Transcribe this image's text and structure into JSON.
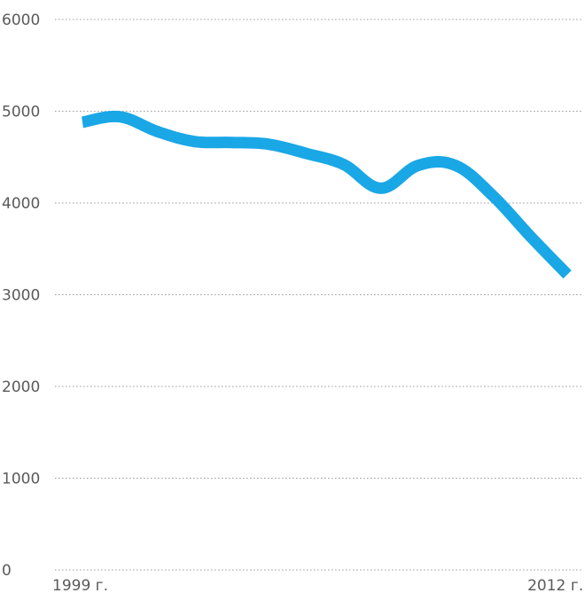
{
  "chart_data": {
    "type": "line",
    "title": "",
    "xlabel": "",
    "ylabel": "",
    "x": [
      1999,
      2000,
      2001,
      2002,
      2003,
      2004,
      2005,
      2006,
      2007,
      2008,
      2009,
      2010,
      2011,
      2012
    ],
    "x_tick_labels": [
      "1999 г.",
      "2012 г."
    ],
    "y_ticks": [
      0,
      1000,
      2000,
      3000,
      4000,
      5000,
      6000
    ],
    "y_tick_labels": [
      "0",
      "1000",
      "2000",
      "3000",
      "4000",
      "5000",
      "6000"
    ],
    "ylim": [
      0,
      6000
    ],
    "grid": true,
    "legend": "none",
    "series": [
      {
        "color": "#1aa7e6",
        "values": [
          4880,
          4940,
          4780,
          4670,
          4660,
          4640,
          4540,
          4420,
          4160,
          4410,
          4410,
          4080,
          3640,
          3220
        ]
      }
    ]
  }
}
